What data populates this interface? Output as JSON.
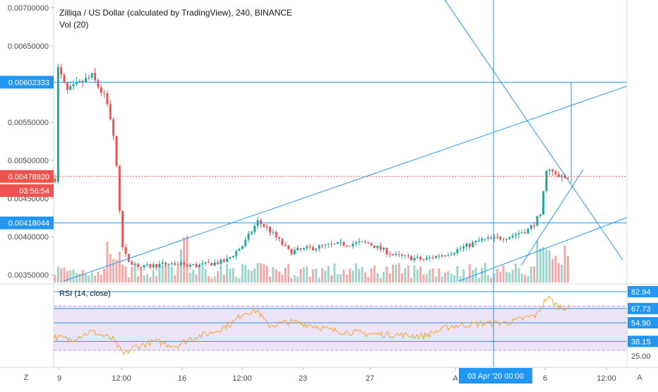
{
  "header": {
    "title": "Zilliqa / US Dollar (calculated by TradingView), 240, BINANCE",
    "volume_label": "Vol (20)"
  },
  "rsi_panel": {
    "label": "RSI (14, close)"
  },
  "timezone_button": "Z",
  "auto_scale_button": "A",
  "colors": {
    "up": "#26a69a",
    "down": "#ef5350",
    "up_volume": "#9fd3cb",
    "down_volume": "#f5a9a7",
    "trendline": "#2196f3",
    "rsi_line": "#f5a623",
    "rsi_band": "#ede3f7",
    "axis_text": "#4a4a4a",
    "current_price": "#ef5350"
  },
  "chart_data": [
    {
      "type": "candlestick",
      "title": "Zilliqa / US Dollar (calculated by TradingView), 240, BINANCE",
      "ylim": [
        0.0034,
        0.0071
      ],
      "y_ticks": [
        "0.00700000",
        "0.00650000",
        "0.00600000",
        "0.00550000",
        "0.00500000",
        "0.00450000",
        "0.00400000",
        "0.00350000"
      ],
      "x_ticks": [
        "9",
        "12:00",
        "16",
        "12:00",
        "23",
        "27",
        "A",
        "6",
        "12:00"
      ],
      "price_labels": [
        {
          "text": "0.00602333",
          "value": 0.00602333
        },
        {
          "text": "0.00478920",
          "value": 0.0047892,
          "kind": "current"
        },
        {
          "text": "03:56:54",
          "kind": "countdown"
        },
        {
          "text": "0.00418044",
          "value": 0.00418044
        }
      ],
      "cursor_time_label": "03 Apr '20   00:00",
      "volume_series_name": "Vol (20)"
    },
    {
      "type": "line",
      "title": "RSI (14, close)",
      "ylim": [
        18,
        88
      ],
      "y_labels": [
        "82.94",
        "67.73",
        "54.90",
        "38.15",
        "25.00"
      ],
      "levels": [
        82.94,
        67.73,
        54.9,
        38.15
      ],
      "band": [
        30,
        70
      ]
    }
  ]
}
